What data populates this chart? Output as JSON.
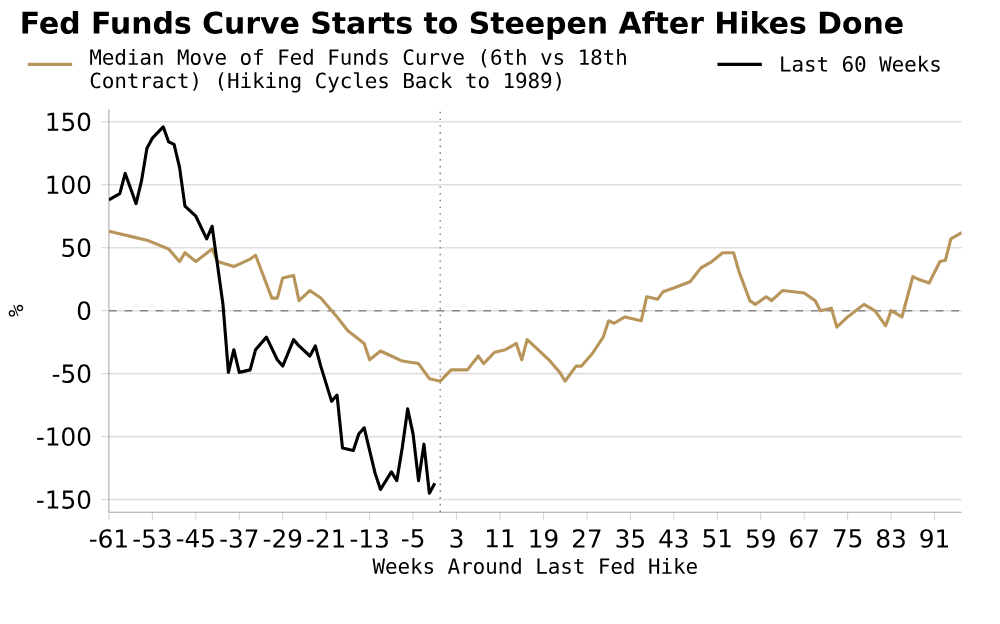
{
  "chart_data": {
    "type": "line",
    "title": "Fed Funds Curve Starts to Steepen After Hikes Done",
    "xlabel": "Weeks Around Last Fed Hike",
    "ylabel": "%",
    "xlim": [
      -61,
      96
    ],
    "ylim": [
      -160,
      160
    ],
    "xticks": [
      -61,
      -53,
      -45,
      -37,
      -29,
      -21,
      -13,
      -5,
      3,
      11,
      19,
      27,
      35,
      43,
      51,
      59,
      67,
      75,
      83,
      91
    ],
    "yticks": [
      -150,
      -100,
      -50,
      0,
      50,
      100,
      150
    ],
    "grid": "y",
    "legend": "top left",
    "ref_lines": [
      {
        "axis": "y",
        "value": 0,
        "color": "#888888",
        "line_style": "dashed"
      },
      {
        "axis": "x",
        "value": 0,
        "color": "#888888",
        "line_style": "dotted"
      }
    ],
    "series": [
      {
        "name": "Median Move of Fed Funds Curve (6th vs 18th Contract) (Hiking Cycles Back to 1989)",
        "color": "#b8955a",
        "x": [
          -61,
          -57,
          -54,
          -50,
          -48,
          -47,
          -45,
          -42,
          -41,
          -38,
          -35,
          -34,
          -31,
          -30,
          -29,
          -27,
          -26,
          -24,
          -22,
          -19,
          -17,
          -14,
          -13,
          -11,
          -9,
          -7,
          -4,
          -2,
          0,
          2,
          5,
          7,
          8,
          10,
          12,
          14,
          15,
          16,
          18,
          20,
          22,
          23,
          25,
          26,
          28,
          30,
          31,
          32,
          34,
          37,
          38,
          40,
          41,
          43,
          46,
          48,
          50,
          52,
          54,
          55,
          57,
          58,
          60,
          61,
          63,
          65,
          67,
          69,
          70,
          72,
          73,
          75,
          78,
          80,
          82,
          83,
          85,
          87,
          88,
          90,
          92,
          93,
          94,
          96
        ],
        "values": [
          63,
          59,
          56,
          49,
          39,
          46,
          39,
          49,
          39,
          35,
          41,
          44,
          10,
          10,
          26,
          28,
          8,
          16,
          10,
          -5,
          -16,
          -26,
          -39,
          -32,
          -36,
          -40,
          -42,
          -54,
          -56,
          -47,
          -47,
          -36,
          -42,
          -33,
          -31,
          -26,
          -39,
          -23,
          -31,
          -39,
          -49,
          -56,
          -44,
          -44,
          -34,
          -21,
          -8,
          -10,
          -5,
          -8,
          11,
          9,
          15,
          18,
          23,
          34,
          39,
          46,
          46,
          31,
          8,
          5,
          11,
          8,
          16,
          15,
          14,
          8,
          0,
          2,
          -13,
          -5,
          5,
          0,
          -12,
          0,
          -5,
          27,
          25,
          22,
          39,
          40,
          57,
          62
        ]
      },
      {
        "name": "Last 60 Weeks",
        "color": "#000000",
        "x": [
          -61,
          -59,
          -58,
          -56,
          -55,
          -54,
          -53,
          -51,
          -50,
          -49,
          -48,
          -47,
          -45,
          -43,
          -42,
          -41,
          -40,
          -39,
          -38,
          -37,
          -35,
          -34,
          -32,
          -30,
          -29,
          -27,
          -26,
          -24,
          -23,
          -22,
          -20,
          -19,
          -18,
          -16,
          -15,
          -14,
          -12,
          -11,
          -9,
          -8,
          -7,
          -6,
          -5,
          -4,
          -3,
          -2,
          -1
        ],
        "values": [
          88,
          93,
          109,
          85,
          103,
          129,
          137,
          146,
          134,
          132,
          114,
          83,
          75,
          57,
          67,
          36,
          5,
          -49,
          -31,
          -49,
          -47,
          -31,
          -21,
          -39,
          -44,
          -23,
          -28,
          -36,
          -28,
          -44,
          -72,
          -67,
          -109,
          -111,
          -98,
          -93,
          -129,
          -142,
          -128,
          -135,
          -109,
          -78,
          -98,
          -135,
          -106,
          -145,
          -137
        ]
      }
    ]
  }
}
